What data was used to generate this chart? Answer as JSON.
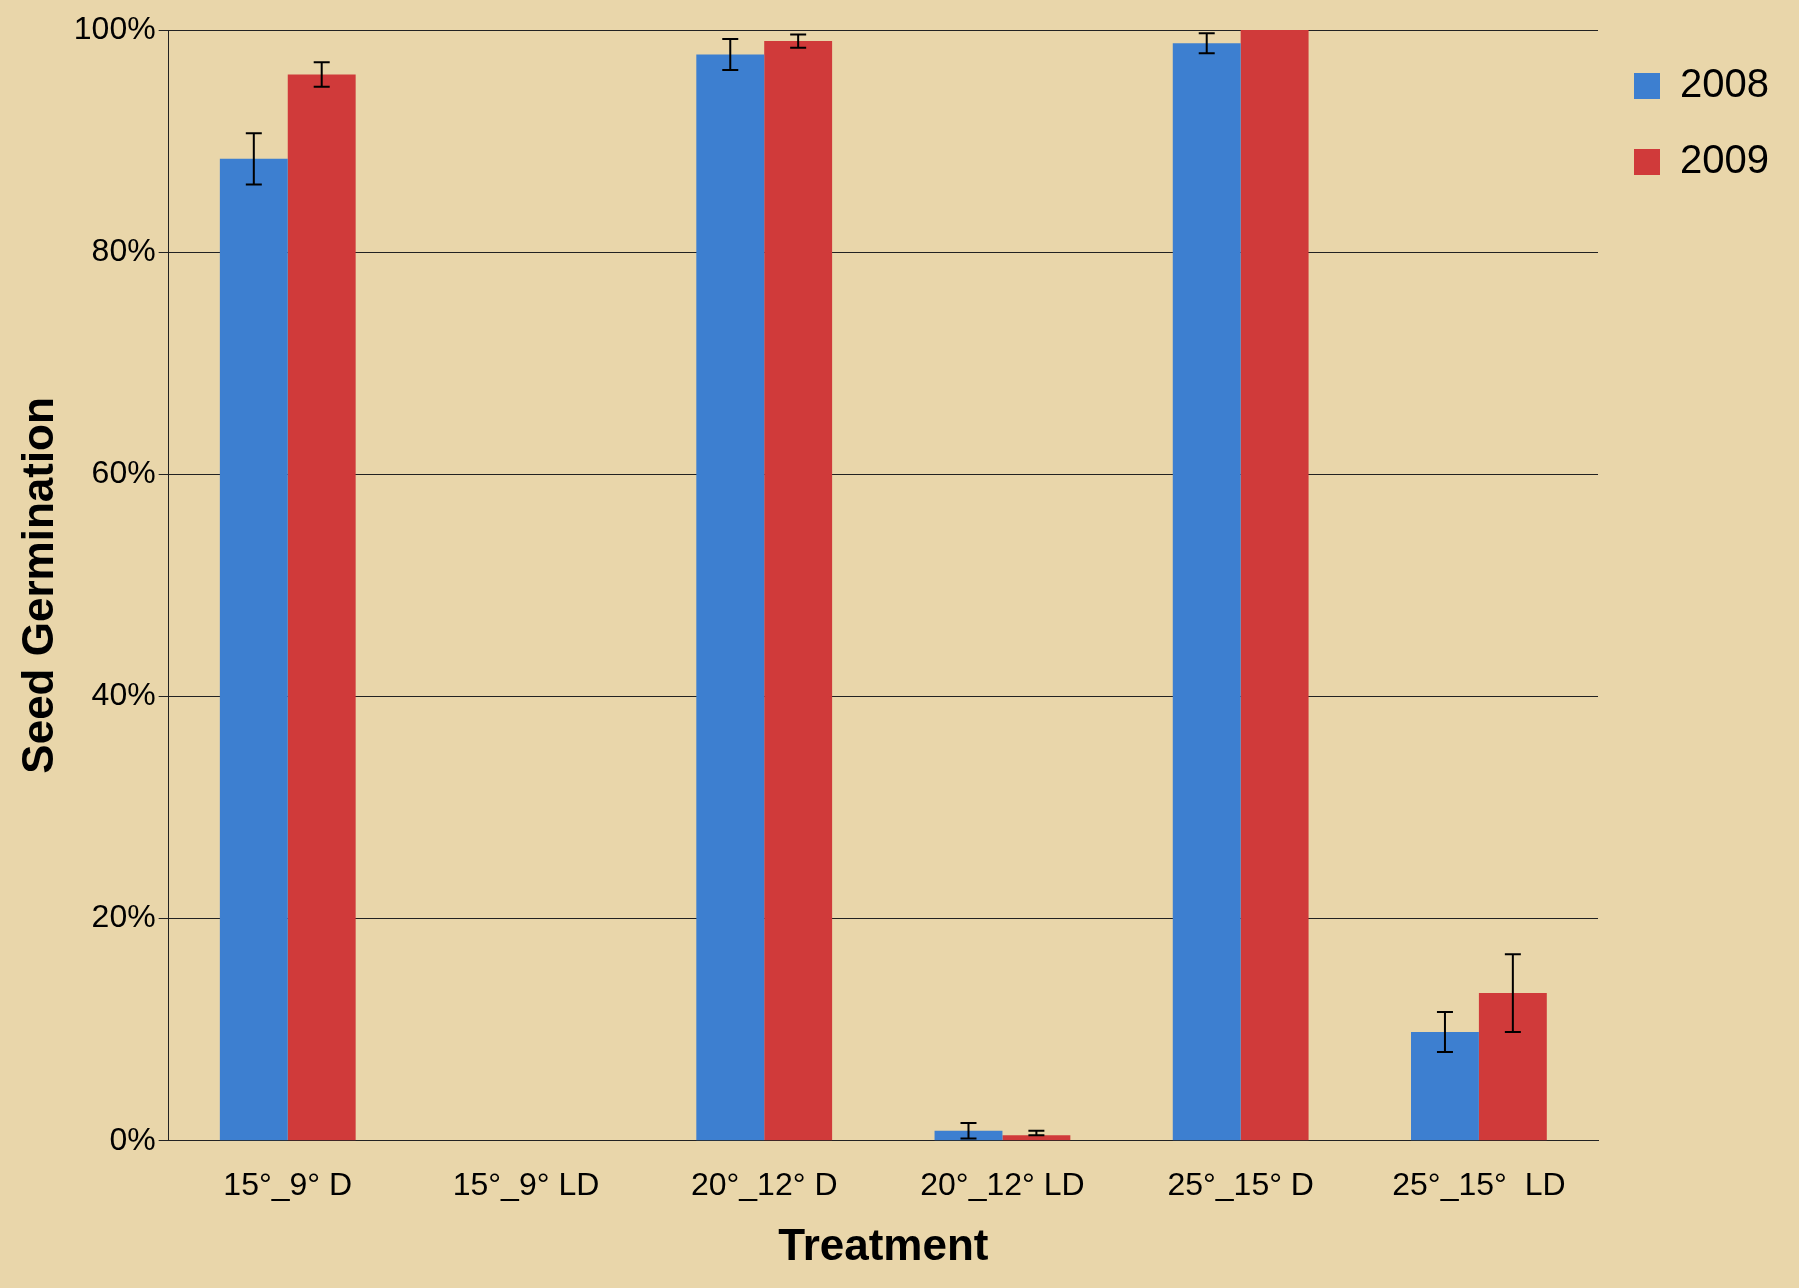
{
  "chart_data": {
    "type": "bar",
    "xlabel": "Treatment",
    "ylabel": "Seed Germination",
    "categories": [
      "15°_9° D",
      "15°_9° LD",
      "20°_12° D",
      "20°_12° LD",
      "25°_15° D",
      "25°_15°  LD"
    ],
    "series": [
      {
        "name": "2008",
        "color": "#3d7fd0",
        "values": [
          88.4,
          0,
          97.8,
          0.9,
          98.8,
          9.8
        ],
        "errors": [
          2.3,
          null,
          1.4,
          0.7,
          0.9,
          1.8
        ]
      },
      {
        "name": "2009",
        "color": "#d03a3a",
        "values": [
          96.0,
          0,
          99.0,
          0.5,
          100,
          13.3
        ],
        "errors": [
          1.1,
          null,
          0.6,
          [
            0.5,
            0.9
          ],
          null,
          3.5
        ]
      }
    ],
    "ylim": [
      0,
      100
    ],
    "yticks": [
      {
        "value": 0,
        "label": "0%"
      },
      {
        "value": 20,
        "label": "20%"
      },
      {
        "value": 40,
        "label": "40%"
      },
      {
        "value": 60,
        "label": "60%"
      },
      {
        "value": 80,
        "label": "80%"
      },
      {
        "value": 100,
        "label": "100%"
      }
    ],
    "grid": "y",
    "legend": "right"
  }
}
